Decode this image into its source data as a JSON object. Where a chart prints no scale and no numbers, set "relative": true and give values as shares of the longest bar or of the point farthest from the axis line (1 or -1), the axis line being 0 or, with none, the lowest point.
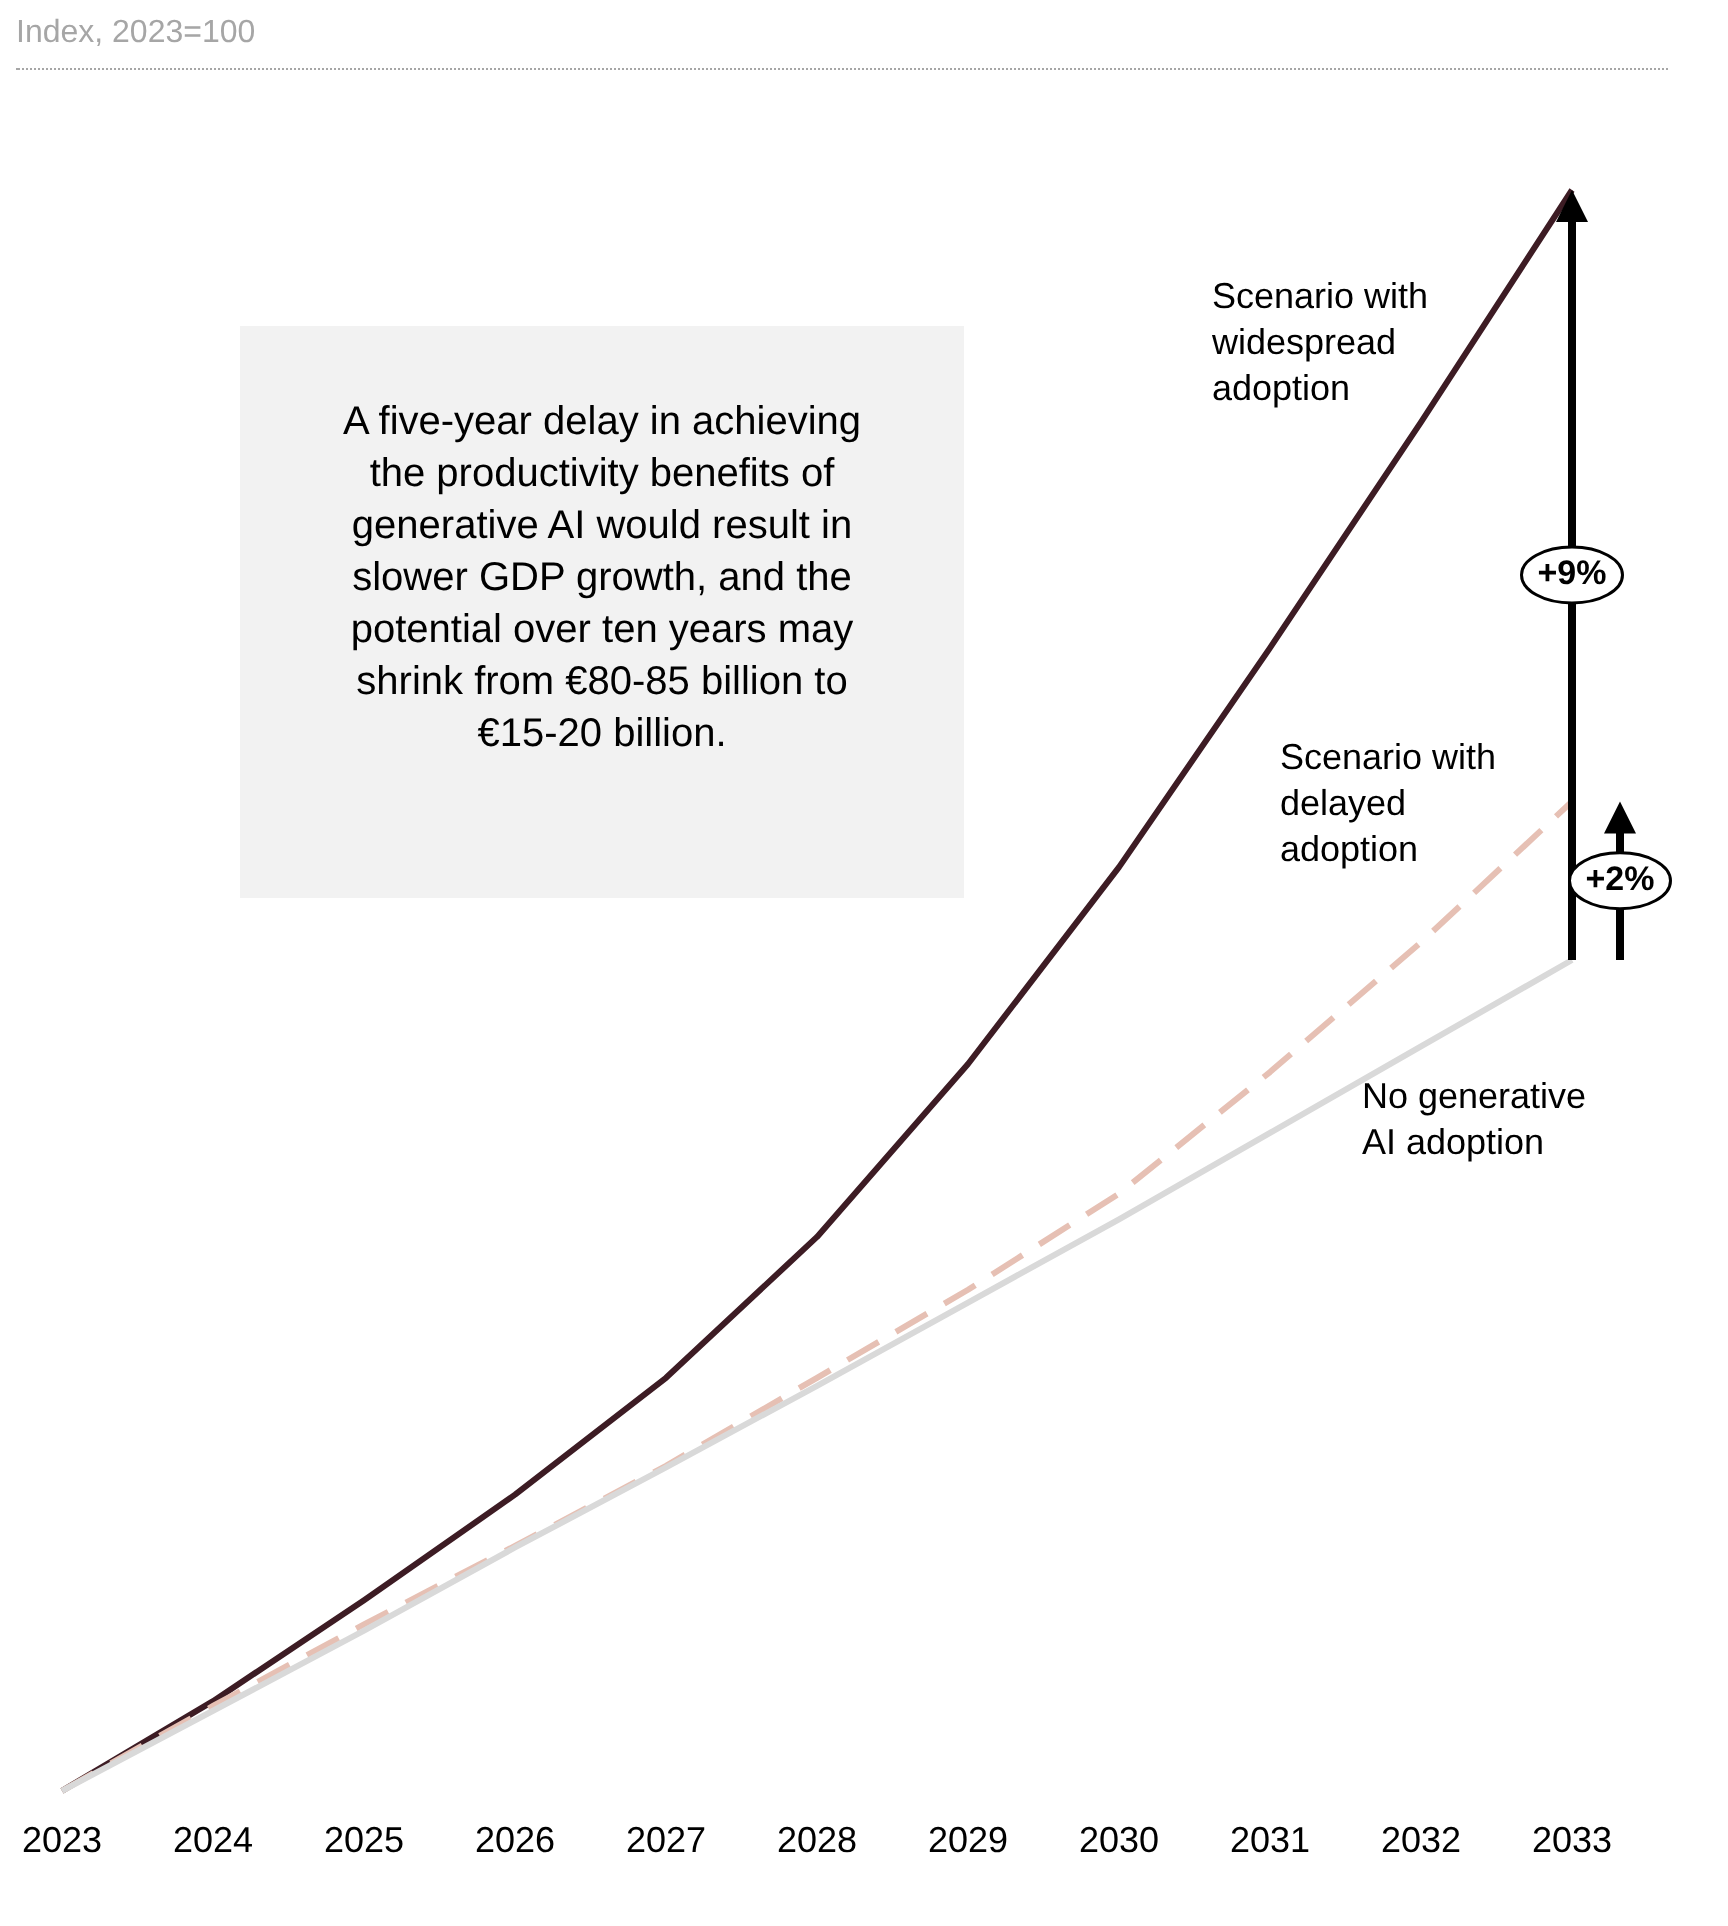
{
  "chart_data": {
    "type": "line",
    "subtitle": "Index,  2023=100",
    "relative": true,
    "legend": false,
    "grid": false,
    "categories": [
      "2023",
      "2024",
      "2025",
      "2026",
      "2027",
      "2028",
      "2029",
      "2030",
      "2031",
      "2032",
      "2033"
    ],
    "series": [
      {
        "name": "Scenario with widespread adoption",
        "color": "#3d1c24",
        "line_style": "solid",
        "values": [
          0,
          0.056,
          0.119,
          0.185,
          0.258,
          0.346,
          0.454,
          0.577,
          0.714,
          0.855,
          1
        ]
      },
      {
        "name": "Scenario with delayed adoption",
        "color": "#e6c0b4",
        "line_style": "dashed",
        "values": [
          0,
          0.053,
          0.104,
          0.153,
          0.203,
          0.258,
          0.313,
          0.373,
          0.449,
          0.53,
          0.618
        ]
      },
      {
        "name": "No generative AI adoption",
        "color": "#d9d9d9",
        "line_style": "solid",
        "values": [
          0,
          0.05,
          0.1,
          0.152,
          0.202,
          0.253,
          0.305,
          0.357,
          0.411,
          0.465,
          0.519
        ]
      }
    ],
    "annotations": [
      "A five-year delay in achieving  the productivity benefits of generative AI would result in slower GDP growth, and the potential over ten years may shrink from €80-85 billion  to €15-20 billion.",
      "+9%",
      "+2%"
    ]
  }
}
